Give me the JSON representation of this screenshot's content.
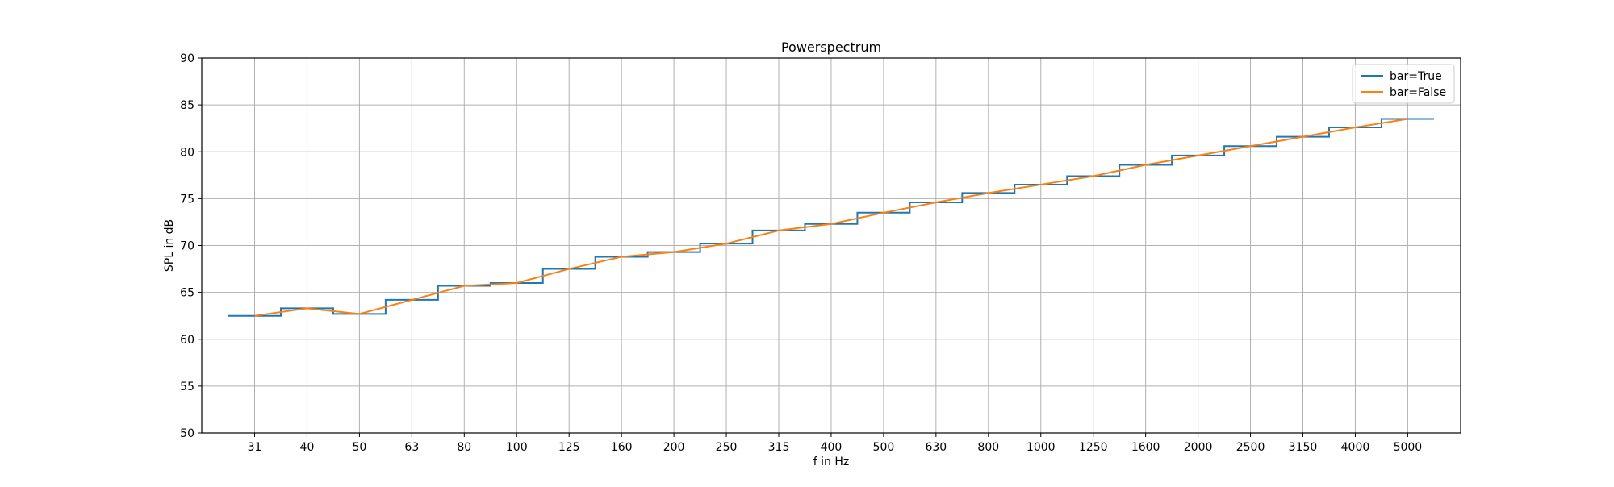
{
  "chart_data": {
    "type": "line",
    "title": "Powerspectrum",
    "xlabel": "f in Hz",
    "ylabel": "SPL in dB",
    "categories": [
      "31",
      "40",
      "50",
      "63",
      "80",
      "100",
      "125",
      "160",
      "200",
      "250",
      "315",
      "400",
      "500",
      "630",
      "800",
      "1000",
      "1250",
      "1600",
      "2000",
      "2500",
      "3150",
      "4000",
      "5000"
    ],
    "ylim": [
      50,
      90
    ],
    "yticks": [
      50,
      55,
      60,
      65,
      70,
      75,
      80,
      85,
      90
    ],
    "grid": true,
    "legend_position": "upper-right",
    "series": [
      {
        "name": "bar=True",
        "style": "step",
        "color": "#1f77b4",
        "values": [
          62.5,
          63.3,
          62.7,
          64.2,
          65.7,
          66.0,
          67.5,
          68.8,
          69.3,
          70.2,
          71.6,
          72.3,
          73.5,
          74.6,
          75.6,
          76.5,
          77.4,
          78.6,
          79.6,
          80.6,
          81.6,
          82.6,
          83.5
        ]
      },
      {
        "name": "bar=False",
        "style": "line",
        "color": "#ff7f0e",
        "values": [
          62.5,
          63.3,
          62.7,
          64.2,
          65.7,
          66.0,
          67.5,
          68.8,
          69.3,
          70.2,
          71.6,
          72.3,
          73.5,
          74.6,
          75.6,
          76.5,
          77.4,
          78.6,
          79.6,
          80.6,
          81.6,
          82.6,
          83.5
        ]
      }
    ]
  }
}
